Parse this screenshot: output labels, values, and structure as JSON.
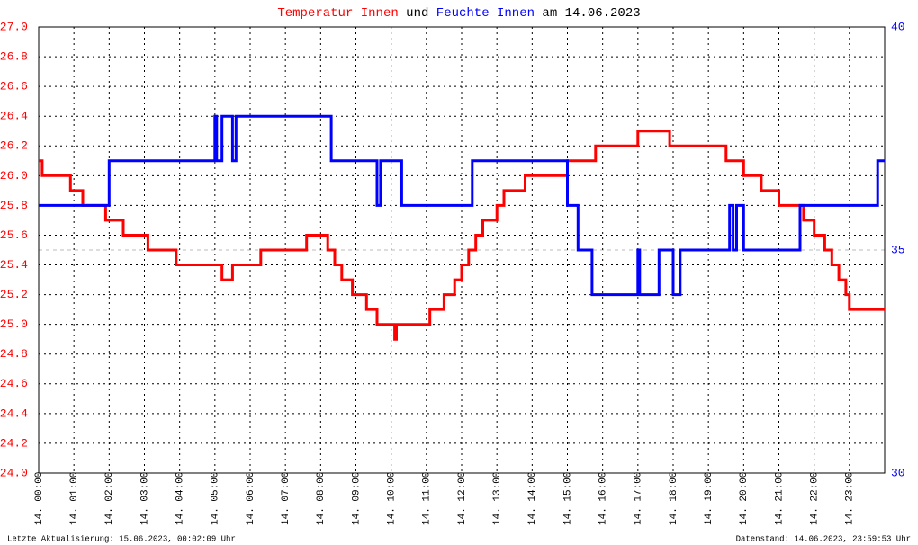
{
  "chart_data": {
    "type": "line",
    "title": [
      "Temperatur Innen",
      "und",
      "Feuchte Innen",
      "am 14.06.2023"
    ],
    "footer_left": "Letzte Aktualisierung: 15.06.2023, 00:02:09 Uhr",
    "footer_right": "Datenstand: 14.06.2023, 23:59:53 Uhr",
    "xlim": [
      0,
      24
    ],
    "xticks": [
      {
        "value": 0,
        "label": "14. 00:00"
      },
      {
        "value": 1,
        "label": "14. 01:00"
      },
      {
        "value": 2,
        "label": "14. 02:00"
      },
      {
        "value": 3,
        "label": "14. 03:00"
      },
      {
        "value": 4,
        "label": "14. 04:00"
      },
      {
        "value": 5,
        "label": "14. 05:00"
      },
      {
        "value": 6,
        "label": "14. 06:00"
      },
      {
        "value": 7,
        "label": "14. 07:00"
      },
      {
        "value": 8,
        "label": "14. 08:00"
      },
      {
        "value": 9,
        "label": "14. 09:00"
      },
      {
        "value": 10,
        "label": "14. 10:00"
      },
      {
        "value": 11,
        "label": "14. 11:00"
      },
      {
        "value": 12,
        "label": "14. 12:00"
      },
      {
        "value": 13,
        "label": "14. 13:00"
      },
      {
        "value": 14,
        "label": "14. 14:00"
      },
      {
        "value": 15,
        "label": "14. 15:00"
      },
      {
        "value": 16,
        "label": "14. 16:00"
      },
      {
        "value": 17,
        "label": "14. 17:00"
      },
      {
        "value": 18,
        "label": "14. 18:00"
      },
      {
        "value": 19,
        "label": "14. 19:00"
      },
      {
        "value": 20,
        "label": "14. 20:00"
      },
      {
        "value": 21,
        "label": "14. 21:00"
      },
      {
        "value": 22,
        "label": "14. 22:00"
      },
      {
        "value": 23,
        "label": "14. 23:00"
      }
    ],
    "ylim": [
      24,
      27
    ],
    "yticks": [
      {
        "value": 24,
        "label": "24.0"
      },
      24.2,
      24.4,
      24.6,
      24.8,
      {
        "value": 25,
        "label": "25.0"
      },
      25.2,
      25.4,
      25.6,
      25.8,
      {
        "value": 26,
        "label": "26.0"
      },
      26.2,
      26.4,
      26.6,
      26.8,
      {
        "value": 27,
        "label": "27.0"
      }
    ],
    "y2lim": [
      30,
      40
    ],
    "y2ticks": [
      30,
      35,
      40
    ],
    "grid": true,
    "series": [
      {
        "name": "Temperatur Innen",
        "color": "#ff0000",
        "x": [
          0,
          0.1,
          0.1,
          0.9,
          0.9,
          1.25,
          1.25,
          1.9,
          1.9,
          2.4,
          2.4,
          3.1,
          3.1,
          3.9,
          3.9,
          5.2,
          5.2,
          5.5,
          5.5,
          6.3,
          6.3,
          7.6,
          7.6,
          8.2,
          8.2,
          8.4,
          8.4,
          8.6,
          8.6,
          8.9,
          8.9,
          9.3,
          9.3,
          9.6,
          9.6,
          10.1,
          10.1,
          10.15,
          10.15,
          11.1,
          11.1,
          11.5,
          11.5,
          11.8,
          11.8,
          12.0,
          12.0,
          12.2,
          12.2,
          12.4,
          12.4,
          12.6,
          12.6,
          13.0,
          13.0,
          13.2,
          13.2,
          13.8,
          13.8,
          15.0,
          15.0,
          15.8,
          15.8,
          17.0,
          17.0,
          17.9,
          17.9,
          19.5,
          19.5,
          20.0,
          20.0,
          20.5,
          20.5,
          21.0,
          21.0,
          21.7,
          21.7,
          22.0,
          22.0,
          22.3,
          22.3,
          22.5,
          22.5,
          22.7,
          22.7,
          22.9,
          22.9,
          23.0,
          23.0,
          24
        ],
        "values": [
          26.1,
          26.1,
          26.0,
          26.0,
          25.9,
          25.9,
          25.8,
          25.8,
          25.7,
          25.7,
          25.6,
          25.6,
          25.5,
          25.5,
          25.4,
          25.4,
          25.3,
          25.3,
          25.4,
          25.4,
          25.5,
          25.5,
          25.6,
          25.6,
          25.5,
          25.5,
          25.4,
          25.4,
          25.3,
          25.3,
          25.2,
          25.2,
          25.1,
          25.1,
          25.0,
          25.0,
          24.9,
          24.9,
          25.0,
          25.0,
          25.1,
          25.1,
          25.2,
          25.2,
          25.3,
          25.3,
          25.4,
          25.4,
          25.5,
          25.5,
          25.6,
          25.6,
          25.7,
          25.7,
          25.8,
          25.8,
          25.9,
          25.9,
          26.0,
          26.0,
          26.1,
          26.1,
          26.2,
          26.2,
          26.3,
          26.3,
          26.2,
          26.2,
          26.1,
          26.1,
          26.0,
          26.0,
          25.9,
          25.9,
          25.8,
          25.8,
          25.7,
          25.7,
          25.6,
          25.6,
          25.5,
          25.5,
          25.4,
          25.4,
          25.3,
          25.3,
          25.2,
          25.2,
          25.1,
          25.1
        ]
      },
      {
        "name": "Feuchte Innen",
        "color": "#0000ff",
        "axis": "y2",
        "x": [
          0,
          2.0,
          2.0,
          5.0,
          5.0,
          5.05,
          5.05,
          5.2,
          5.2,
          5.5,
          5.5,
          5.6,
          5.6,
          8.3,
          8.3,
          9.6,
          9.6,
          9.7,
          9.7,
          10.3,
          10.3,
          12.3,
          12.3,
          15.0,
          15.0,
          15.3,
          15.3,
          15.7,
          15.7,
          17.0,
          17.0,
          17.05,
          17.05,
          17.6,
          17.6,
          18.0,
          18.0,
          18.2,
          18.2,
          19.6,
          19.6,
          19.7,
          19.7,
          19.8,
          19.8,
          20.0,
          20.0,
          21.6,
          21.6,
          23.8,
          23.8,
          24
        ],
        "values": [
          36,
          36,
          37,
          37,
          38,
          38,
          37,
          37,
          38,
          38,
          37,
          37,
          38,
          38,
          37,
          37,
          36,
          36,
          37,
          37,
          36,
          36,
          37,
          37,
          36,
          36,
          35,
          35,
          34,
          34,
          35,
          35,
          34,
          34,
          35,
          35,
          34,
          34,
          35,
          35,
          36,
          36,
          35,
          35,
          36,
          36,
          35,
          35,
          36,
          36,
          37,
          37
        ]
      }
    ]
  }
}
